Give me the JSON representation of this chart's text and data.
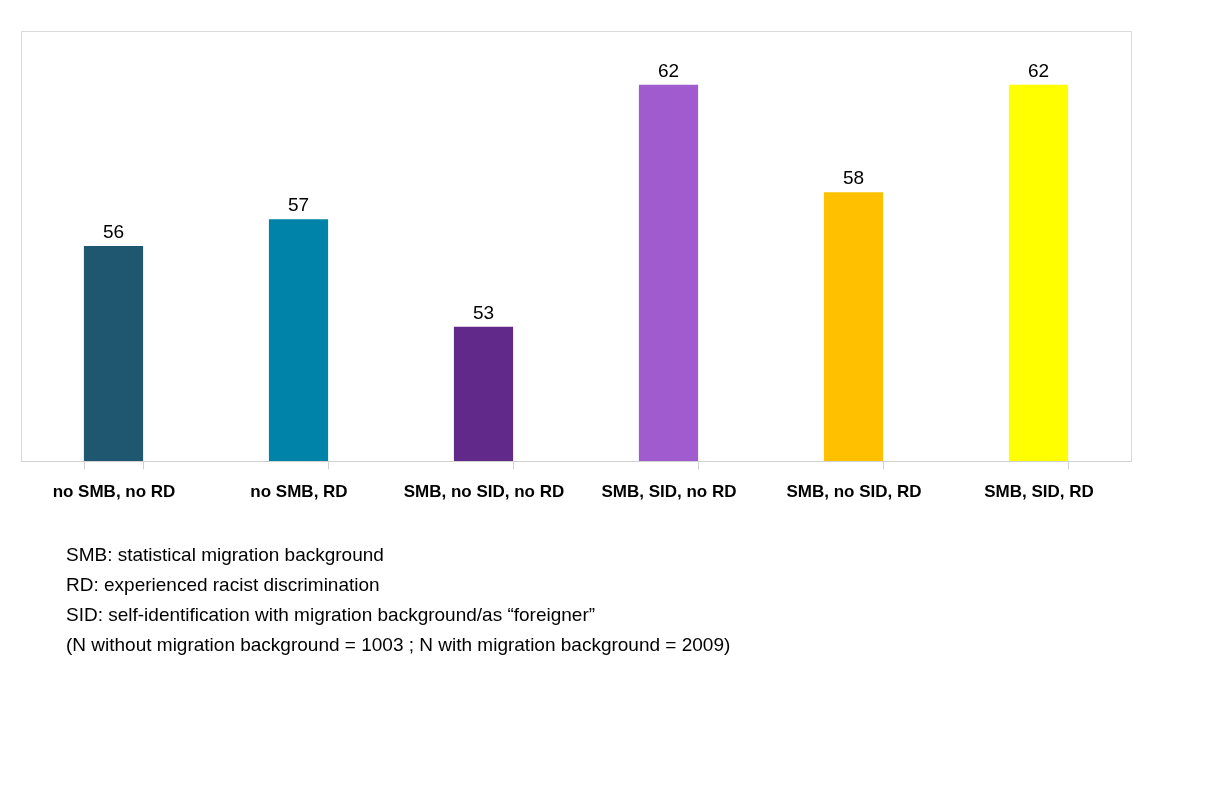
{
  "chart_data": {
    "type": "bar",
    "categories": [
      "no SMB, no RD",
      "no SMB, RD",
      "SMB, no SID, no RD",
      "SMB, SID, no RD",
      "SMB, no SID, RD",
      "SMB, SID, RD"
    ],
    "values": [
      56,
      57,
      53,
      62,
      58,
      62
    ],
    "colors": [
      "#1f5670",
      "#0083a8",
      "#612a8a",
      "#a05bcf",
      "#ffc000",
      "#ffff00"
    ],
    "ylim": [
      48,
      64
    ],
    "data_labels": true,
    "grid": false,
    "tick_labels": "x",
    "annotations": [
      "SMB: statistical migration background",
      "RD: experienced racist discrimination",
      "SID: self-identification with migration background/as “foreigner”",
      "(N without migration background = 1003 ; N with migration background = 2009)"
    ]
  }
}
